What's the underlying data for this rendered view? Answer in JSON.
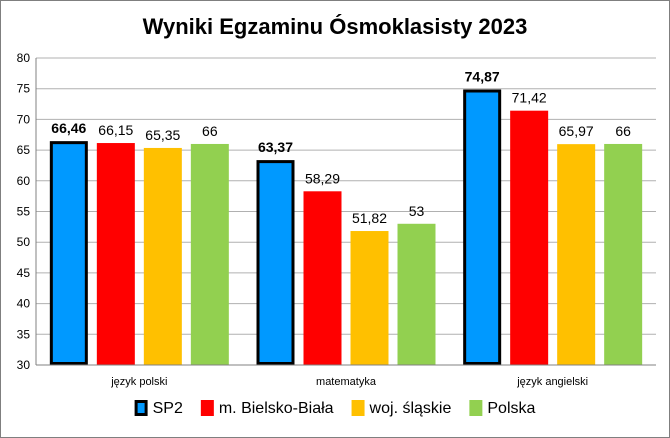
{
  "chart_data": {
    "type": "bar",
    "title": "Wyniki Egzaminu Ósmoklasisty 2023",
    "categories": [
      "język polski",
      "matematyka",
      "język angielski"
    ],
    "series": [
      {
        "name": "SP2",
        "color": "#0099ff",
        "highlight": true,
        "values": [
          66.46,
          63.37,
          74.87
        ],
        "labels": [
          "66,46",
          "63,37",
          "74,87"
        ]
      },
      {
        "name": "m. Bielsko-Biała",
        "color": "#ff0000",
        "highlight": false,
        "values": [
          66.15,
          58.29,
          71.42
        ],
        "labels": [
          "66,15",
          "58,29",
          "71,42"
        ]
      },
      {
        "name": "woj. śląskie",
        "color": "#ffc000",
        "highlight": false,
        "values": [
          65.35,
          51.82,
          65.97
        ],
        "labels": [
          "65,35",
          "51,82",
          "65,97"
        ]
      },
      {
        "name": "Polska",
        "color": "#92d050",
        "highlight": false,
        "values": [
          66,
          53,
          66
        ],
        "labels": [
          "66",
          "53",
          "66"
        ]
      }
    ],
    "ylim": [
      30,
      80
    ],
    "yticks": [
      30,
      35,
      40,
      45,
      50,
      55,
      60,
      65,
      70,
      75,
      80
    ],
    "xlabel": "",
    "ylabel": "",
    "grid": true,
    "legend": "bottom"
  }
}
